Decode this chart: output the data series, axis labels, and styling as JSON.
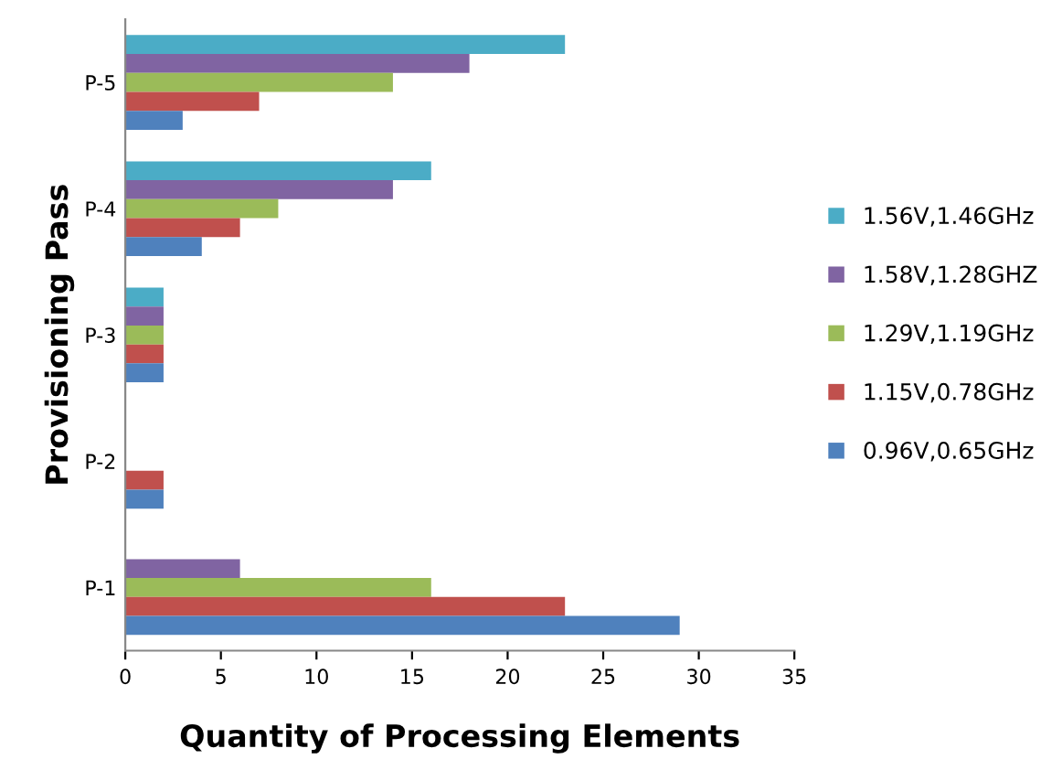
{
  "chart_data": {
    "type": "bar",
    "orientation": "horizontal",
    "xlabel": "Quantity of Processing Elements",
    "ylabel": "Provisioning Pass",
    "categories": [
      "P-5",
      "P-4",
      "P-3",
      "P-2",
      "P-1"
    ],
    "series": [
      {
        "name": "1.56V,1.46GHz",
        "color": "#4bacc6",
        "values": [
          23,
          16,
          2,
          0,
          0
        ]
      },
      {
        "name": "1.58V,1.28GHZ",
        "color": "#8064a2",
        "values": [
          18,
          14,
          2,
          0,
          6
        ]
      },
      {
        "name": "1.29V,1.19GHz",
        "color": "#9bbb59",
        "values": [
          14,
          8,
          2,
          0,
          16
        ]
      },
      {
        "name": "1.15V,0.78GHz",
        "color": "#c0504d",
        "values": [
          7,
          6,
          2,
          2,
          23
        ]
      },
      {
        "name": "0.96V,0.65GHz",
        "color": "#4f81bd",
        "values": [
          3,
          4,
          2,
          2,
          29
        ]
      }
    ],
    "xlim": [
      0,
      35
    ],
    "xticks": [
      0,
      5,
      10,
      15,
      20,
      25,
      30,
      35
    ],
    "grid": false,
    "legend": "right"
  }
}
